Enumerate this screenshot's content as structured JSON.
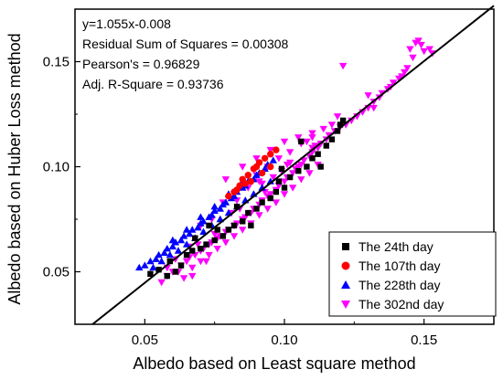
{
  "chart_data": {
    "type": "scatter",
    "title": "",
    "xlabel": "Albedo based on Least  square method",
    "ylabel": "Albedo based on Huber Loss method",
    "xlim": [
      0.025,
      0.175
    ],
    "ylim": [
      0.025,
      0.175
    ],
    "x_ticks": [
      "0.05",
      "0.10",
      "0.15"
    ],
    "y_ticks": [
      "0.05",
      "0.10",
      "0.15"
    ],
    "x_tick_values": [
      0.05,
      0.1,
      0.15
    ],
    "y_tick_values": [
      0.05,
      0.1,
      0.15
    ],
    "grid": false,
    "legend_position": "bottom-right",
    "fit_line": {
      "slope": 1.055,
      "intercept": -0.008
    },
    "annotations": [
      "y=1.055x-0.008",
      "Residual Sum of Squares = 0.00308",
      "Pearson's = 0.96829",
      "Adj. R-Square = 0.93736"
    ],
    "series": [
      {
        "name": "The 24th day",
        "marker": "square",
        "color": "#000000",
        "points": [
          [
            0.052,
            0.049
          ],
          [
            0.055,
            0.051
          ],
          [
            0.058,
            0.048
          ],
          [
            0.061,
            0.05
          ],
          [
            0.063,
            0.053
          ],
          [
            0.065,
            0.058
          ],
          [
            0.067,
            0.06
          ],
          [
            0.07,
            0.061
          ],
          [
            0.072,
            0.063
          ],
          [
            0.075,
            0.065
          ],
          [
            0.078,
            0.067
          ],
          [
            0.08,
            0.07
          ],
          [
            0.082,
            0.072
          ],
          [
            0.085,
            0.074
          ],
          [
            0.088,
            0.072
          ],
          [
            0.09,
            0.08
          ],
          [
            0.092,
            0.083
          ],
          [
            0.095,
            0.085
          ],
          [
            0.097,
            0.088
          ],
          [
            0.1,
            0.09
          ],
          [
            0.102,
            0.095
          ],
          [
            0.105,
            0.098
          ],
          [
            0.108,
            0.1
          ],
          [
            0.11,
            0.104
          ],
          [
            0.112,
            0.106
          ],
          [
            0.115,
            0.11
          ],
          [
            0.117,
            0.113
          ],
          [
            0.119,
            0.117
          ],
          [
            0.12,
            0.12
          ],
          [
            0.121,
            0.122
          ],
          [
            0.113,
            0.1
          ],
          [
            0.098,
            0.093
          ],
          [
            0.087,
            0.078
          ],
          [
            0.076,
            0.07
          ],
          [
            0.068,
            0.066
          ],
          [
            0.059,
            0.055
          ],
          [
            0.106,
            0.112
          ],
          [
            0.099,
            0.099
          ],
          [
            0.083,
            0.081
          ],
          [
            0.073,
            0.072
          ]
        ]
      },
      {
        "name": "The 107th day",
        "marker": "circle",
        "color": "#ff0000",
        "points": [
          [
            0.08,
            0.086
          ],
          [
            0.083,
            0.089
          ],
          [
            0.085,
            0.094
          ],
          [
            0.087,
            0.096
          ],
          [
            0.089,
            0.099
          ],
          [
            0.091,
            0.102
          ],
          [
            0.093,
            0.104
          ],
          [
            0.095,
            0.106
          ],
          [
            0.097,
            0.108
          ],
          [
            0.084,
            0.091
          ],
          [
            0.088,
            0.093
          ],
          [
            0.092,
            0.097
          ],
          [
            0.09,
            0.1
          ],
          [
            0.095,
            0.1
          ],
          [
            0.082,
            0.088
          ],
          [
            0.086,
            0.092
          ]
        ]
      },
      {
        "name": "The 228th day",
        "marker": "triangle-up",
        "color": "#0000ff",
        "points": [
          [
            0.048,
            0.052
          ],
          [
            0.05,
            0.053
          ],
          [
            0.052,
            0.055
          ],
          [
            0.054,
            0.056
          ],
          [
            0.055,
            0.058
          ],
          [
            0.057,
            0.059
          ],
          [
            0.058,
            0.061
          ],
          [
            0.06,
            0.062
          ],
          [
            0.061,
            0.064
          ],
          [
            0.063,
            0.065
          ],
          [
            0.064,
            0.067
          ],
          [
            0.066,
            0.068
          ],
          [
            0.067,
            0.07
          ],
          [
            0.069,
            0.071
          ],
          [
            0.07,
            0.073
          ],
          [
            0.071,
            0.074
          ],
          [
            0.073,
            0.076
          ],
          [
            0.074,
            0.077
          ],
          [
            0.075,
            0.079
          ],
          [
            0.077,
            0.08
          ],
          [
            0.078,
            0.082
          ],
          [
            0.079,
            0.083
          ],
          [
            0.081,
            0.085
          ],
          [
            0.082,
            0.086
          ],
          [
            0.083,
            0.088
          ],
          [
            0.085,
            0.09
          ],
          [
            0.086,
            0.091
          ],
          [
            0.087,
            0.093
          ],
          [
            0.089,
            0.094
          ],
          [
            0.09,
            0.096
          ],
          [
            0.091,
            0.097
          ],
          [
            0.093,
            0.099
          ],
          [
            0.094,
            0.101
          ],
          [
            0.096,
            0.103
          ],
          [
            0.053,
            0.052
          ],
          [
            0.056,
            0.055
          ],
          [
            0.059,
            0.058
          ],
          [
            0.062,
            0.06
          ],
          [
            0.065,
            0.063
          ],
          [
            0.068,
            0.066
          ],
          [
            0.071,
            0.069
          ],
          [
            0.074,
            0.072
          ],
          [
            0.077,
            0.075
          ],
          [
            0.08,
            0.078
          ],
          [
            0.083,
            0.081
          ],
          [
            0.086,
            0.084
          ],
          [
            0.089,
            0.087
          ],
          [
            0.092,
            0.09
          ],
          [
            0.095,
            0.093
          ],
          [
            0.06,
            0.065
          ],
          [
            0.065,
            0.07
          ],
          [
            0.07,
            0.076
          ],
          [
            0.075,
            0.081
          ],
          [
            0.08,
            0.087
          ],
          [
            0.085,
            0.093
          ]
        ]
      },
      {
        "name": "The 302nd day",
        "marker": "triangle-down",
        "color": "#ff00ff",
        "points": [
          [
            0.056,
            0.045
          ],
          [
            0.058,
            0.048
          ],
          [
            0.06,
            0.05
          ],
          [
            0.062,
            0.05
          ],
          [
            0.063,
            0.053
          ],
          [
            0.065,
            0.055
          ],
          [
            0.066,
            0.057
          ],
          [
            0.068,
            0.058
          ],
          [
            0.07,
            0.06
          ],
          [
            0.071,
            0.061
          ],
          [
            0.073,
            0.063
          ],
          [
            0.074,
            0.064
          ],
          [
            0.076,
            0.066
          ],
          [
            0.077,
            0.067
          ],
          [
            0.079,
            0.069
          ],
          [
            0.08,
            0.07
          ],
          [
            0.082,
            0.072
          ],
          [
            0.083,
            0.073
          ],
          [
            0.085,
            0.075
          ],
          [
            0.086,
            0.076
          ],
          [
            0.088,
            0.078
          ],
          [
            0.089,
            0.08
          ],
          [
            0.091,
            0.082
          ],
          [
            0.092,
            0.084
          ],
          [
            0.094,
            0.086
          ],
          [
            0.095,
            0.087
          ],
          [
            0.097,
            0.089
          ],
          [
            0.098,
            0.091
          ],
          [
            0.1,
            0.093
          ],
          [
            0.101,
            0.095
          ],
          [
            0.103,
            0.097
          ],
          [
            0.104,
            0.099
          ],
          [
            0.106,
            0.101
          ],
          [
            0.107,
            0.103
          ],
          [
            0.109,
            0.105
          ],
          [
            0.11,
            0.107
          ],
          [
            0.112,
            0.109
          ],
          [
            0.113,
            0.111
          ],
          [
            0.115,
            0.113
          ],
          [
            0.116,
            0.115
          ],
          [
            0.064,
            0.047
          ],
          [
            0.067,
            0.052
          ],
          [
            0.07,
            0.055
          ],
          [
            0.073,
            0.058
          ],
          [
            0.076,
            0.061
          ],
          [
            0.079,
            0.064
          ],
          [
            0.082,
            0.067
          ],
          [
            0.085,
            0.07
          ],
          [
            0.088,
            0.073
          ],
          [
            0.091,
            0.077
          ],
          [
            0.094,
            0.08
          ],
          [
            0.097,
            0.083
          ],
          [
            0.1,
            0.087
          ],
          [
            0.103,
            0.09
          ],
          [
            0.106,
            0.094
          ],
          [
            0.109,
            0.097
          ],
          [
            0.112,
            0.101
          ],
          [
            0.078,
            0.083
          ],
          [
            0.082,
            0.087
          ],
          [
            0.086,
            0.092
          ],
          [
            0.09,
            0.096
          ],
          [
            0.094,
            0.1
          ],
          [
            0.098,
            0.104
          ],
          [
            0.102,
            0.107
          ],
          [
            0.106,
            0.111
          ],
          [
            0.11,
            0.114
          ],
          [
            0.079,
            0.094
          ],
          [
            0.085,
            0.1
          ],
          [
            0.09,
            0.104
          ],
          [
            0.095,
            0.108
          ],
          [
            0.1,
            0.112
          ],
          [
            0.105,
            0.114
          ],
          [
            0.11,
            0.116
          ],
          [
            0.118,
            0.117
          ],
          [
            0.12,
            0.119
          ],
          [
            0.122,
            0.12
          ],
          [
            0.124,
            0.122
          ],
          [
            0.126,
            0.124
          ],
          [
            0.128,
            0.126
          ],
          [
            0.13,
            0.128
          ],
          [
            0.132,
            0.131
          ],
          [
            0.134,
            0.133
          ],
          [
            0.135,
            0.135
          ],
          [
            0.137,
            0.137
          ],
          [
            0.139,
            0.14
          ],
          [
            0.141,
            0.142
          ],
          [
            0.143,
            0.145
          ],
          [
            0.144,
            0.147
          ],
          [
            0.146,
            0.152
          ],
          [
            0.145,
            0.156
          ],
          [
            0.147,
            0.159
          ],
          [
            0.148,
            0.16
          ],
          [
            0.149,
            0.158
          ],
          [
            0.15,
            0.155
          ],
          [
            0.152,
            0.156
          ],
          [
            0.153,
            0.154
          ],
          [
            0.13,
            0.134
          ],
          [
            0.132,
            0.128
          ],
          [
            0.138,
            0.138
          ],
          [
            0.142,
            0.143
          ],
          [
            0.121,
            0.148
          ],
          [
            0.072,
            0.055
          ],
          [
            0.067,
            0.048
          ],
          [
            0.058,
            0.052
          ],
          [
            0.087,
            0.09
          ],
          [
            0.091,
            0.093
          ],
          [
            0.099,
            0.098
          ],
          [
            0.105,
            0.1
          ],
          [
            0.108,
            0.112
          ],
          [
            0.114,
            0.118
          ],
          [
            0.117,
            0.12
          ],
          [
            0.081,
            0.078
          ],
          [
            0.084,
            0.08
          ],
          [
            0.093,
            0.088
          ],
          [
            0.096,
            0.095
          ],
          [
            0.102,
            0.102
          ],
          [
            0.075,
            0.068
          ],
          [
            0.069,
            0.063
          ],
          [
            0.061,
            0.056
          ],
          [
            0.111,
            0.11
          ],
          [
            0.074,
            0.075
          ],
          [
            0.083,
            0.084
          ],
          [
            0.092,
            0.092
          ],
          [
            0.101,
            0.101
          ],
          [
            0.11,
            0.109
          ],
          [
            0.119,
            0.124
          ],
          [
            0.07,
            0.072
          ],
          [
            0.066,
            0.062
          ]
        ]
      }
    ]
  }
}
